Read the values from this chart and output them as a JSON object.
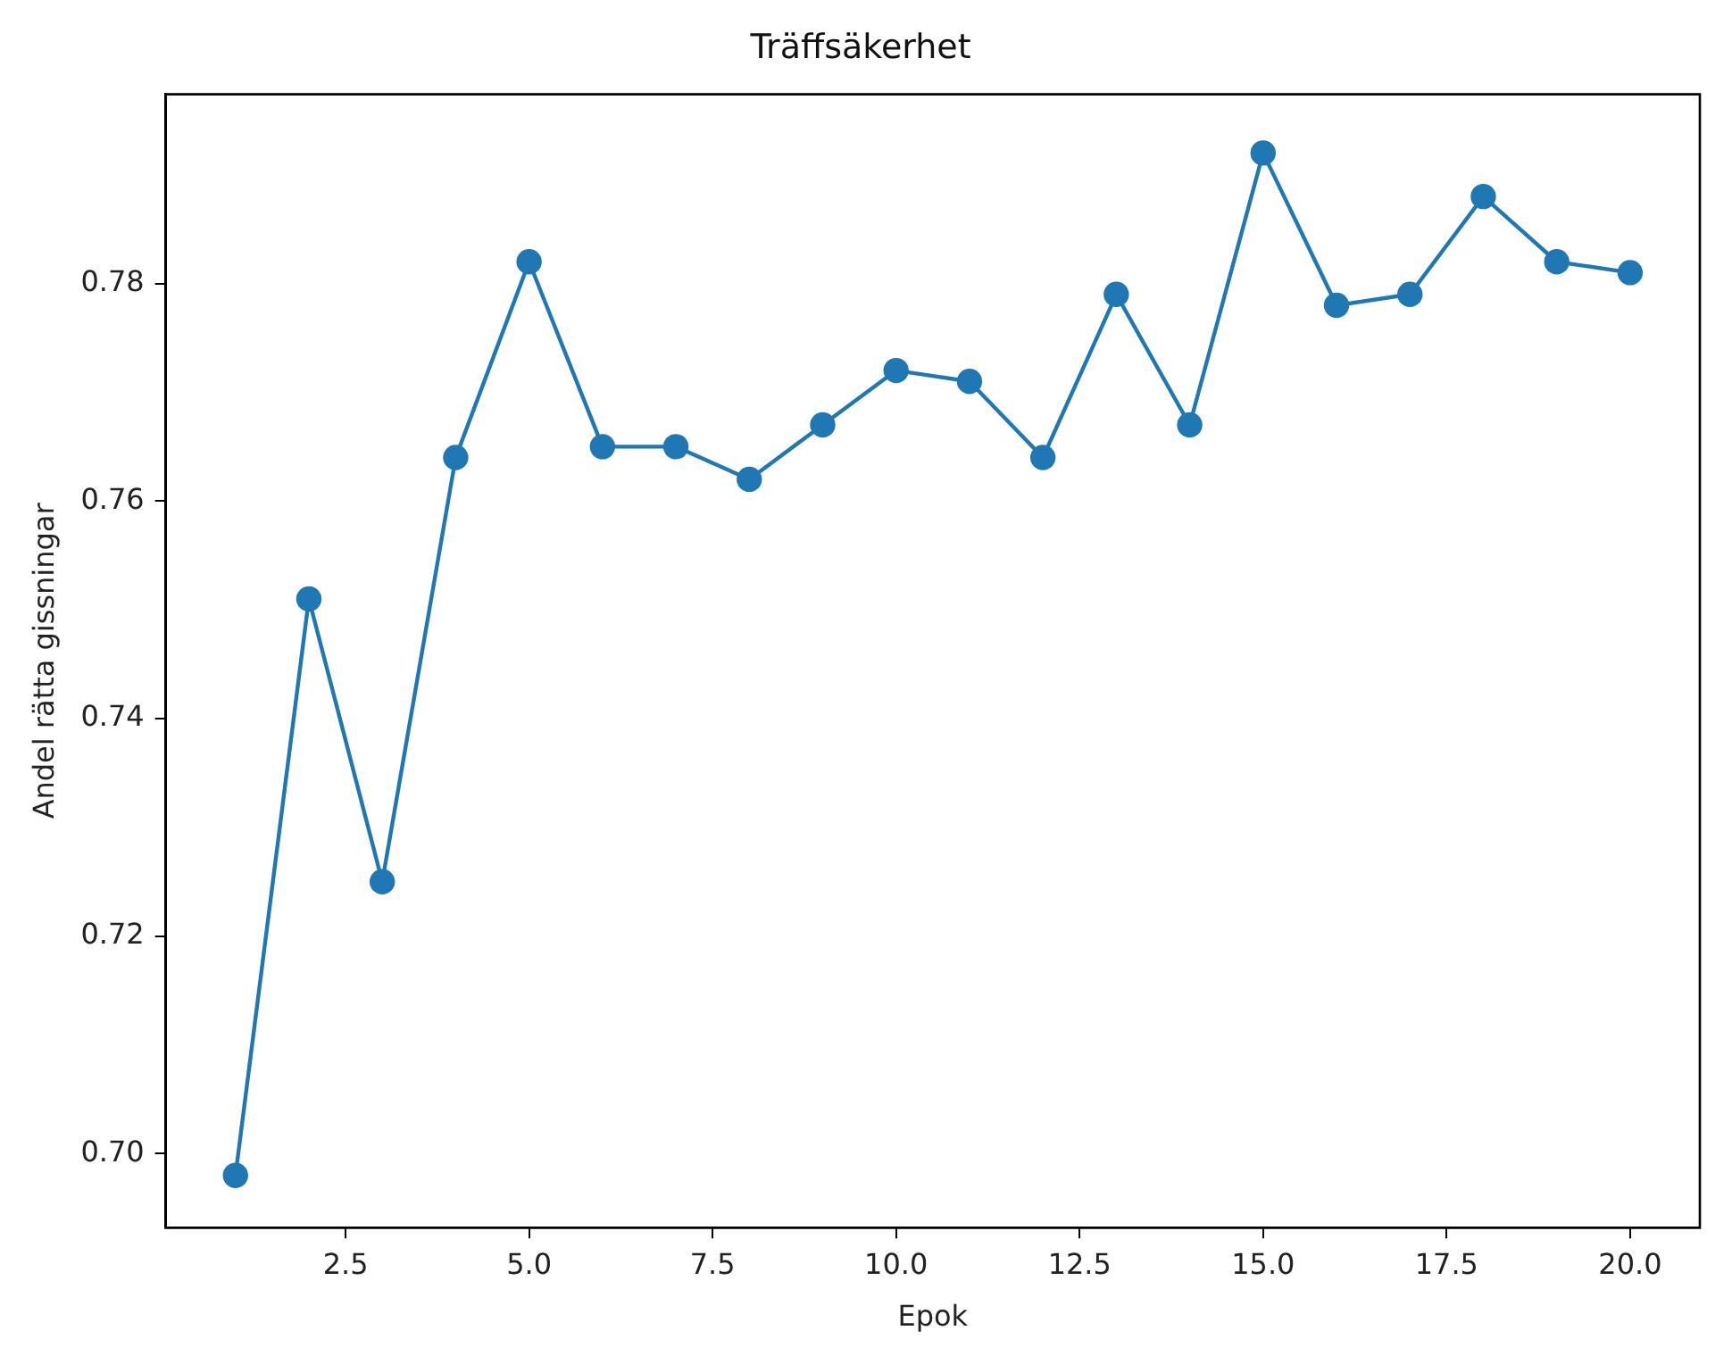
{
  "chart_data": {
    "type": "line",
    "title": "Träffsäkerhet",
    "xlabel": "Epok",
    "ylabel": "Andel rätta gissningar",
    "x": [
      1,
      2,
      3,
      4,
      5,
      6,
      7,
      8,
      9,
      10,
      11,
      12,
      13,
      14,
      15,
      16,
      17,
      18,
      19,
      20
    ],
    "series": [
      {
        "color": "#1f77b4",
        "values": [
          0.698,
          0.751,
          0.725,
          0.764,
          0.782,
          0.765,
          0.765,
          0.762,
          0.767,
          0.772,
          0.771,
          0.764,
          0.779,
          0.767,
          0.792,
          0.778,
          0.779,
          0.788,
          0.782,
          0.781
        ]
      }
    ],
    "xlim": [
      0.05,
      20.95
    ],
    "xticks": [
      {
        "value": 2.5,
        "label": "2.5"
      },
      {
        "value": 5,
        "label": "5.0"
      },
      {
        "value": 7.5,
        "label": "7.5"
      },
      {
        "value": 10,
        "label": "10.0"
      },
      {
        "value": 12.5,
        "label": "12.5"
      },
      {
        "value": 15,
        "label": "15.0"
      },
      {
        "value": 17.5,
        "label": "17.5"
      },
      {
        "value": 20,
        "label": "20.0"
      }
    ],
    "ylim": [
      0.6932,
      0.7974
    ],
    "yticks": [
      {
        "value": 0.7,
        "label": "0.70"
      },
      {
        "value": 0.72,
        "label": "0.72"
      },
      {
        "value": 0.74,
        "label": "0.74"
      },
      {
        "value": 0.76,
        "label": "0.76"
      },
      {
        "value": 0.78,
        "label": "0.78"
      }
    ],
    "grid": false,
    "legend": false,
    "marker": "circle",
    "line_style": "solid"
  }
}
